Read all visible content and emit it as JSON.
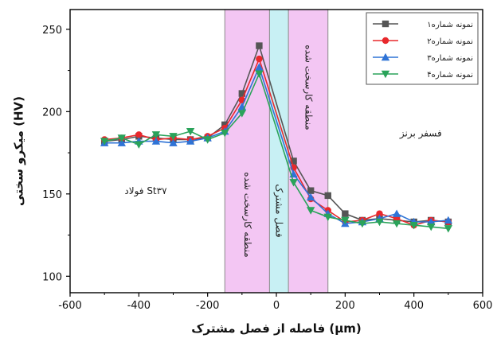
{
  "chart_data": {
    "type": "line",
    "xlabel": "فاصله از فصل مشترک  (μm)",
    "ylabel": "میکرو سختی (HV)",
    "xlim": [
      -600,
      600
    ],
    "ylim": [
      90,
      262
    ],
    "xticks": [
      -600,
      -400,
      -200,
      0,
      200,
      400,
      600
    ],
    "yticks": [
      100,
      150,
      200,
      250
    ],
    "grid": false,
    "legend_position": "top-right",
    "regions": [
      {
        "x0": -150,
        "x1": -20,
        "color": "#f3c6f3",
        "label": "منطقه کارسخت شده"
      },
      {
        "x0": -20,
        "x1": 35,
        "color": "#c8f0f4",
        "label": "فصل مشترک"
      },
      {
        "x0": 35,
        "x1": 150,
        "color": "#f3c6f3",
        "label": "منطقه کارسخت شده"
      }
    ],
    "annotations": [
      {
        "text": "فولاد St۳۷",
        "x": -380,
        "y": 150
      },
      {
        "text": "فسفر برنز",
        "x": 420,
        "y": 185
      }
    ],
    "series": [
      {
        "name": "نمونه شماره۱",
        "color": "#555555",
        "marker": "square",
        "x": [
          -500,
          -450,
          -400,
          -350,
          -300,
          -250,
          -200,
          -150,
          -100,
          -50,
          50,
          100,
          150,
          200,
          250,
          300,
          350,
          400,
          450,
          500
        ],
        "y": [
          182,
          183,
          185,
          184,
          183,
          183,
          184,
          192,
          211,
          240,
          170,
          152,
          149,
          138,
          134,
          135,
          134,
          133,
          134,
          133
        ]
      },
      {
        "name": "نمونه شماره۲",
        "color": "#e8282c",
        "marker": "circle",
        "x": [
          -500,
          -450,
          -400,
          -350,
          -300,
          -250,
          -200,
          -150,
          -100,
          -50,
          50,
          100,
          150,
          200,
          250,
          300,
          350,
          400,
          450,
          500
        ],
        "y": [
          183,
          184,
          186,
          183,
          184,
          183,
          185,
          190,
          207,
          232,
          166,
          147,
          140,
          133,
          134,
          138,
          135,
          131,
          134,
          133
        ]
      },
      {
        "name": "نمونه شماره۳",
        "color": "#2f73d6",
        "marker": "triangle-up",
        "x": [
          -500,
          -450,
          -400,
          -350,
          -300,
          -250,
          -200,
          -150,
          -100,
          -50,
          50,
          100,
          150,
          200,
          250,
          300,
          350,
          400,
          450,
          500
        ],
        "y": [
          181,
          181,
          182,
          182,
          181,
          182,
          184,
          188,
          203,
          227,
          162,
          148,
          138,
          132,
          133,
          135,
          138,
          133,
          133,
          134
        ]
      },
      {
        "name": "نمونه شماره۴",
        "color": "#2aa35a",
        "marker": "triangle-down",
        "x": [
          -500,
          -450,
          -400,
          -350,
          -300,
          -250,
          -200,
          -150,
          -100,
          -50,
          50,
          100,
          150,
          200,
          250,
          300,
          350,
          400,
          450,
          500
        ],
        "y": [
          182,
          184,
          180,
          186,
          185,
          188,
          183,
          187,
          199,
          223,
          157,
          140,
          136,
          134,
          132,
          133,
          132,
          131,
          130,
          129
        ]
      }
    ]
  }
}
